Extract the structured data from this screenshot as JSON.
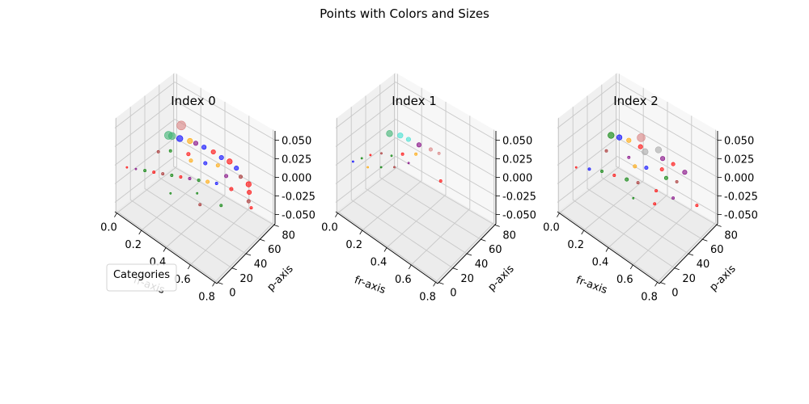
{
  "figure": {
    "suptitle": "Points with Colors and Sizes"
  },
  "legend": {
    "title": "Categories"
  },
  "chart_data": [
    {
      "type": "scatter",
      "projection": "3d",
      "title": "Index 0",
      "xlabel": "fr-axis",
      "ylabel": "p-axis",
      "zlabel": "",
      "xlim": [
        0,
        0.85
      ],
      "ylim": [
        0,
        90
      ],
      "zlim": [
        -0.055,
        0.055
      ],
      "xticks": [
        "0.0",
        "0.2",
        "0.4",
        "0.6",
        "0.8"
      ],
      "yticks": [
        "0",
        "20",
        "40",
        "60",
        "80"
      ],
      "zticks": [
        "0.050",
        "0.025",
        "0.000",
        "-0.025",
        "-0.050"
      ],
      "grid": true,
      "points": [
        {
          "x": 0.05,
          "y": 90,
          "z": 0,
          "s": 10,
          "c": "#d98080"
        },
        {
          "x": 0.05,
          "y": 70,
          "z": 0,
          "s": 9,
          "c": "#3cb371"
        },
        {
          "x": 0.07,
          "y": 72,
          "z": 0,
          "s": 8,
          "c": "#3cb371"
        },
        {
          "x": 0.12,
          "y": 75,
          "z": 0,
          "s": 7,
          "c": "#0000ff"
        },
        {
          "x": 0.18,
          "y": 80,
          "z": 0,
          "s": 6,
          "c": "#ffa500"
        },
        {
          "x": 0.22,
          "y": 82,
          "z": 0,
          "s": 5,
          "c": "#800080"
        },
        {
          "x": 0.28,
          "y": 84,
          "z": 0,
          "s": 5,
          "c": "#0000ff"
        },
        {
          "x": 0.35,
          "y": 86,
          "z": 0,
          "s": 5,
          "c": "#ff0000"
        },
        {
          "x": 0.42,
          "y": 86,
          "z": 0,
          "s": 5,
          "c": "#0000ff"
        },
        {
          "x": 0.48,
          "y": 88,
          "z": 0,
          "s": 6,
          "c": "#ff0000"
        },
        {
          "x": 0.55,
          "y": 86,
          "z": 0,
          "s": 5,
          "c": "#0000ff"
        },
        {
          "x": 0.62,
          "y": 80,
          "z": 0,
          "s": 4,
          "c": "#a52a2a"
        },
        {
          "x": 0.7,
          "y": 78,
          "z": 0,
          "s": 6,
          "c": "#ff0000"
        },
        {
          "x": 0.75,
          "y": 70,
          "z": 0,
          "s": 5,
          "c": "#ff0000"
        },
        {
          "x": 0.8,
          "y": 60,
          "z": 0,
          "s": 4,
          "c": "#a52a2a"
        },
        {
          "x": 0.85,
          "y": 55,
          "z": 0,
          "s": 3,
          "c": "#ff0000"
        },
        {
          "x": 0.65,
          "y": 60,
          "z": 0,
          "s": 4,
          "c": "#ff0000"
        },
        {
          "x": 0.55,
          "y": 55,
          "z": 0,
          "s": 3,
          "c": "#0000ff"
        },
        {
          "x": 0.5,
          "y": 50,
          "z": 0,
          "s": 4,
          "c": "#ffa500"
        },
        {
          "x": 0.45,
          "y": 45,
          "z": 0,
          "s": 3,
          "c": "#008000"
        },
        {
          "x": 0.4,
          "y": 40,
          "z": 0,
          "s": 3,
          "c": "#800080"
        },
        {
          "x": 0.35,
          "y": 35,
          "z": 0,
          "s": 3,
          "c": "#ff0000"
        },
        {
          "x": 0.3,
          "y": 30,
          "z": 0,
          "s": 3,
          "c": "#008000"
        },
        {
          "x": 0.25,
          "y": 25,
          "z": 0,
          "s": 3,
          "c": "#a52a2a"
        },
        {
          "x": 0.2,
          "y": 20,
          "z": 0,
          "s": 3,
          "c": "#ff0000"
        },
        {
          "x": 0.15,
          "y": 15,
          "z": 0,
          "s": 3,
          "c": "#008000"
        },
        {
          "x": 0.1,
          "y": 10,
          "z": 0,
          "s": 2,
          "c": "#800080"
        },
        {
          "x": 0.05,
          "y": 5,
          "z": 0,
          "s": 2,
          "c": "#ff0000"
        },
        {
          "x": 0.4,
          "y": 10,
          "z": 0,
          "s": 2,
          "c": "#008000"
        },
        {
          "x": 0.6,
          "y": 20,
          "z": 0,
          "s": 3,
          "c": "#a52a2a"
        },
        {
          "x": 0.7,
          "y": 35,
          "z": 0,
          "s": 3,
          "c": "#008000"
        },
        {
          "x": 0.3,
          "y": 60,
          "z": 0,
          "s": 4,
          "c": "#ffa500"
        },
        {
          "x": 0.25,
          "y": 65,
          "z": 0,
          "s": 4,
          "c": "#ff0000"
        },
        {
          "x": 0.15,
          "y": 55,
          "z": 0,
          "s": 3,
          "c": "#008000"
        },
        {
          "x": 0.1,
          "y": 45,
          "z": 0,
          "s": 3,
          "c": "#a52a2a"
        },
        {
          "x": 0.55,
          "y": 70,
          "z": 0,
          "s": 4,
          "c": "#800080"
        },
        {
          "x": 0.45,
          "y": 75,
          "z": 0,
          "s": 4,
          "c": "#ffa500"
        },
        {
          "x": 0.38,
          "y": 68,
          "z": 0,
          "s": 4,
          "c": "#0000ff"
        },
        {
          "x": 0.52,
          "y": 30,
          "z": 0,
          "s": 2,
          "c": "#008000"
        }
      ]
    },
    {
      "type": "scatter",
      "projection": "3d",
      "title": "Index 1",
      "xlabel": "fr-axis",
      "ylabel": "p-axis",
      "zlabel": "",
      "xlim": [
        0,
        0.85
      ],
      "ylim": [
        0,
        90
      ],
      "zlim": [
        -0.055,
        0.055
      ],
      "xticks": [
        "0.0",
        "0.2",
        "0.4",
        "0.6",
        "0.8"
      ],
      "yticks": [
        "0",
        "20",
        "40",
        "60",
        "80"
      ],
      "zticks": [
        "0.050",
        "0.025",
        "0.000",
        "-0.025",
        "-0.050"
      ],
      "grid": true,
      "points": [
        {
          "x": 0.04,
          "y": 72,
          "z": 0,
          "s": 7,
          "c": "#3cb371"
        },
        {
          "x": 0.1,
          "y": 78,
          "z": 0,
          "s": 6,
          "c": "#40e0d0"
        },
        {
          "x": 0.16,
          "y": 80,
          "z": 0,
          "s": 5,
          "c": "#40e0d0"
        },
        {
          "x": 0.24,
          "y": 82,
          "z": 0,
          "s": 5,
          "c": "#800080"
        },
        {
          "x": 0.32,
          "y": 86,
          "z": 0,
          "s": 4,
          "c": "#d98080"
        },
        {
          "x": 0.38,
          "y": 88,
          "z": 0,
          "s": 3,
          "c": "#d98080"
        },
        {
          "x": 0.28,
          "y": 70,
          "z": 0,
          "s": 3,
          "c": "#ffa500"
        },
        {
          "x": 0.22,
          "y": 60,
          "z": 0,
          "s": 3,
          "c": "#ff0000"
        },
        {
          "x": 0.3,
          "y": 55,
          "z": 0,
          "s": 2,
          "c": "#800080"
        },
        {
          "x": 0.55,
          "y": 60,
          "z": 0,
          "s": 3,
          "c": "#ff0000"
        },
        {
          "x": 0.18,
          "y": 50,
          "z": 0,
          "s": 2,
          "c": "#008000"
        },
        {
          "x": 0.12,
          "y": 45,
          "z": 0,
          "s": 2,
          "c": "#a52a2a"
        },
        {
          "x": 0.08,
          "y": 35,
          "z": 0,
          "s": 2,
          "c": "#ff0000"
        },
        {
          "x": 0.06,
          "y": 25,
          "z": 0,
          "s": 2,
          "c": "#008000"
        },
        {
          "x": 0.04,
          "y": 15,
          "z": 0,
          "s": 2,
          "c": "#0000ff"
        },
        {
          "x": 0.14,
          "y": 20,
          "z": 0,
          "s": 2,
          "c": "#ffa500"
        },
        {
          "x": 0.2,
          "y": 30,
          "z": 0,
          "s": 2,
          "c": "#008000"
        },
        {
          "x": 0.26,
          "y": 40,
          "z": 0,
          "s": 2,
          "c": "#a52a2a"
        }
      ]
    },
    {
      "type": "scatter",
      "projection": "3d",
      "title": "Index 2",
      "xlabel": "fr-axis",
      "ylabel": "p-axis",
      "zlabel": "",
      "xlim": [
        0,
        0.85
      ],
      "ylim": [
        0,
        90
      ],
      "zlim": [
        -0.055,
        0.055
      ],
      "xticks": [
        "0.0",
        "0.2",
        "0.4",
        "0.6",
        "0.8"
      ],
      "yticks": [
        "0",
        "20",
        "40",
        "60",
        "80"
      ],
      "zticks": [
        "0.050",
        "0.025",
        "0.000",
        "-0.025",
        "-0.050"
      ],
      "grid": true,
      "points": [
        {
          "x": 0.2,
          "y": 90,
          "z": 0,
          "s": 9,
          "c": "#d98080"
        },
        {
          "x": 0.35,
          "y": 90,
          "z": 0,
          "s": 7,
          "c": "#a9a9a9"
        },
        {
          "x": 0.3,
          "y": 78,
          "z": 0,
          "s": 7,
          "c": "#a9a9a9"
        },
        {
          "x": 0.05,
          "y": 70,
          "z": 0,
          "s": 7,
          "c": "#008000"
        },
        {
          "x": 0.1,
          "y": 74,
          "z": 0,
          "s": 6,
          "c": "#0000ff"
        },
        {
          "x": 0.16,
          "y": 78,
          "z": 0,
          "s": 5,
          "c": "#ffa500"
        },
        {
          "x": 0.25,
          "y": 80,
          "z": 0,
          "s": 5,
          "c": "#ff0000"
        },
        {
          "x": 0.42,
          "y": 84,
          "z": 0,
          "s": 5,
          "c": "#800080"
        },
        {
          "x": 0.5,
          "y": 86,
          "z": 0,
          "s": 4,
          "c": "#ff0000"
        },
        {
          "x": 0.6,
          "y": 86,
          "z": 0,
          "s": 5,
          "c": "#800080"
        },
        {
          "x": 0.48,
          "y": 72,
          "z": 0,
          "s": 4,
          "c": "#ff0000"
        },
        {
          "x": 0.55,
          "y": 66,
          "z": 0,
          "s": 4,
          "c": "#008000"
        },
        {
          "x": 0.62,
          "y": 70,
          "z": 0,
          "s": 3,
          "c": "#a52a2a"
        },
        {
          "x": 0.85,
          "y": 60,
          "z": 0,
          "s": 3,
          "c": "#ff0000"
        },
        {
          "x": 0.7,
          "y": 50,
          "z": 0,
          "s": 3,
          "c": "#800080"
        },
        {
          "x": 0.58,
          "y": 45,
          "z": 0,
          "s": 3,
          "c": "#ff0000"
        },
        {
          "x": 0.45,
          "y": 40,
          "z": 0,
          "s": 3,
          "c": "#a52a2a"
        },
        {
          "x": 0.38,
          "y": 35,
          "z": 0,
          "s": 4,
          "c": "#008000"
        },
        {
          "x": 0.3,
          "y": 30,
          "z": 0,
          "s": 3,
          "c": "#ff0000"
        },
        {
          "x": 0.22,
          "y": 25,
          "z": 0,
          "s": 3,
          "c": "#008000"
        },
        {
          "x": 0.15,
          "y": 18,
          "z": 0,
          "s": 3,
          "c": "#0000ff"
        },
        {
          "x": 0.08,
          "y": 10,
          "z": 0,
          "s": 2,
          "c": "#ff0000"
        },
        {
          "x": 0.34,
          "y": 55,
          "z": 0,
          "s": 4,
          "c": "#ffa500"
        },
        {
          "x": 0.26,
          "y": 60,
          "z": 0,
          "s": 3,
          "c": "#800080"
        },
        {
          "x": 0.4,
          "y": 62,
          "z": 0,
          "s": 4,
          "c": "#0000ff"
        },
        {
          "x": 0.12,
          "y": 50,
          "z": 0,
          "s": 3,
          "c": "#a52a2a"
        },
        {
          "x": 0.52,
          "y": 20,
          "z": 0,
          "s": 2,
          "c": "#008000"
        },
        {
          "x": 0.65,
          "y": 30,
          "z": 0,
          "s": 3,
          "c": "#ff0000"
        }
      ]
    }
  ]
}
